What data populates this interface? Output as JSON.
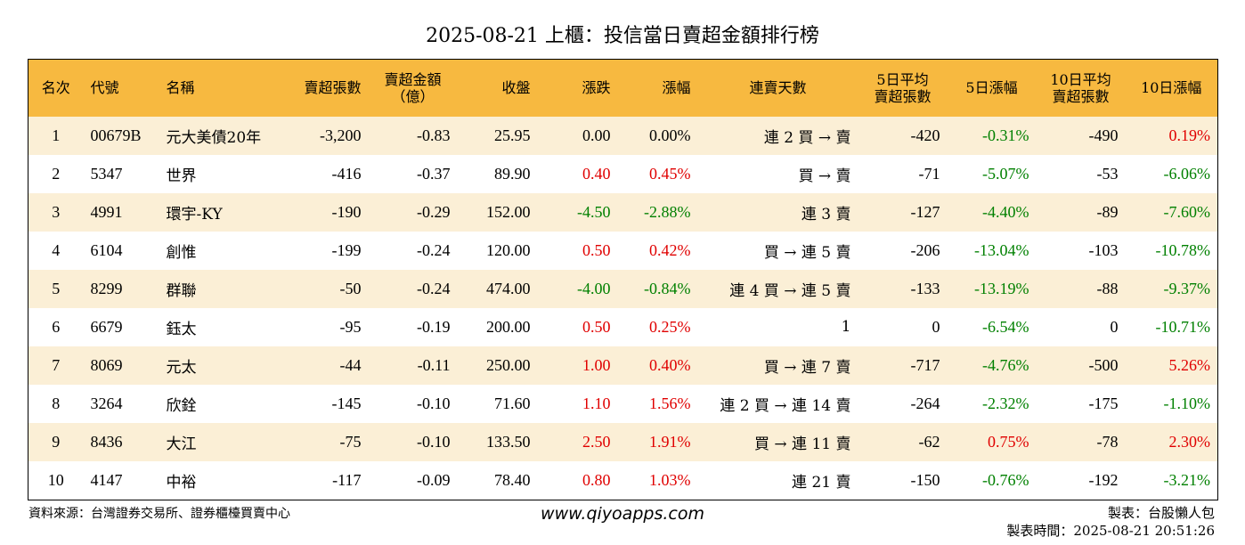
{
  "title": "2025-08-21 上櫃：投信當日賣超金額排行榜",
  "headers": {
    "rank": "名次",
    "code": "代號",
    "name": "名稱",
    "sell_lots": "賣超張數",
    "sell_amount_1": "賣超金額",
    "sell_amount_2": "（億）",
    "close": "收盤",
    "change": "漲跌",
    "change_pct": "漲幅",
    "streak": "連賣天數",
    "avg5_1": "5日平均",
    "avg5_2": "賣超張數",
    "pct5": "5日漲幅",
    "avg10_1": "10日平均",
    "avg10_2": "賣超張數",
    "pct10": "10日漲幅"
  },
  "colors": {
    "header_bg": "#f7b940",
    "stripe_bg": "#fbefd6",
    "up": "#e00000",
    "down": "#008000"
  },
  "rows": [
    {
      "rank": "1",
      "code": "00679B",
      "name": "元大美債20年",
      "sell_lots": "-3,200",
      "sell_amount": "-0.83",
      "close": "25.95",
      "change": "0.00",
      "change_pct": "0.00%",
      "streak": "連 2 買 → 賣",
      "avg5": "-420",
      "pct5": "-0.31%",
      "avg10": "-490",
      "pct10": "0.19%",
      "chg_dir": "neu",
      "pct5_dir": "down",
      "pct10_dir": "up"
    },
    {
      "rank": "2",
      "code": "5347",
      "name": "世界",
      "sell_lots": "-416",
      "sell_amount": "-0.37",
      "close": "89.90",
      "change": "0.40",
      "change_pct": "0.45%",
      "streak": "買 → 賣",
      "avg5": "-71",
      "pct5": "-5.07%",
      "avg10": "-53",
      "pct10": "-6.06%",
      "chg_dir": "up",
      "pct5_dir": "down",
      "pct10_dir": "down"
    },
    {
      "rank": "3",
      "code": "4991",
      "name": "環宇-KY",
      "sell_lots": "-190",
      "sell_amount": "-0.29",
      "close": "152.00",
      "change": "-4.50",
      "change_pct": "-2.88%",
      "streak": "連 3 賣",
      "avg5": "-127",
      "pct5": "-4.40%",
      "avg10": "-89",
      "pct10": "-7.60%",
      "chg_dir": "down",
      "pct5_dir": "down",
      "pct10_dir": "down"
    },
    {
      "rank": "4",
      "code": "6104",
      "name": "創惟",
      "sell_lots": "-199",
      "sell_amount": "-0.24",
      "close": "120.00",
      "change": "0.50",
      "change_pct": "0.42%",
      "streak": "買 → 連 5 賣",
      "avg5": "-206",
      "pct5": "-13.04%",
      "avg10": "-103",
      "pct10": "-10.78%",
      "chg_dir": "up",
      "pct5_dir": "down",
      "pct10_dir": "down"
    },
    {
      "rank": "5",
      "code": "8299",
      "name": "群聯",
      "sell_lots": "-50",
      "sell_amount": "-0.24",
      "close": "474.00",
      "change": "-4.00",
      "change_pct": "-0.84%",
      "streak": "連 4 買 → 連 5 賣",
      "avg5": "-133",
      "pct5": "-13.19%",
      "avg10": "-88",
      "pct10": "-9.37%",
      "chg_dir": "down",
      "pct5_dir": "down",
      "pct10_dir": "down"
    },
    {
      "rank": "6",
      "code": "6679",
      "name": "鈺太",
      "sell_lots": "-95",
      "sell_amount": "-0.19",
      "close": "200.00",
      "change": "0.50",
      "change_pct": "0.25%",
      "streak": "1",
      "avg5": "0",
      "pct5": "-6.54%",
      "avg10": "0",
      "pct10": "-10.71%",
      "chg_dir": "up",
      "pct5_dir": "down",
      "pct10_dir": "down"
    },
    {
      "rank": "7",
      "code": "8069",
      "name": "元太",
      "sell_lots": "-44",
      "sell_amount": "-0.11",
      "close": "250.00",
      "change": "1.00",
      "change_pct": "0.40%",
      "streak": "買 → 連 7 賣",
      "avg5": "-717",
      "pct5": "-4.76%",
      "avg10": "-500",
      "pct10": "5.26%",
      "chg_dir": "up",
      "pct5_dir": "down",
      "pct10_dir": "up"
    },
    {
      "rank": "8",
      "code": "3264",
      "name": "欣銓",
      "sell_lots": "-145",
      "sell_amount": "-0.10",
      "close": "71.60",
      "change": "1.10",
      "change_pct": "1.56%",
      "streak": "連 2 買 → 連 14 賣",
      "avg5": "-264",
      "pct5": "-2.32%",
      "avg10": "-175",
      "pct10": "-1.10%",
      "chg_dir": "up",
      "pct5_dir": "down",
      "pct10_dir": "down"
    },
    {
      "rank": "9",
      "code": "8436",
      "name": "大江",
      "sell_lots": "-75",
      "sell_amount": "-0.10",
      "close": "133.50",
      "change": "2.50",
      "change_pct": "1.91%",
      "streak": "買 → 連 11 賣",
      "avg5": "-62",
      "pct5": "0.75%",
      "avg10": "-78",
      "pct10": "2.30%",
      "chg_dir": "up",
      "pct5_dir": "up",
      "pct10_dir": "up"
    },
    {
      "rank": "10",
      "code": "4147",
      "name": "中裕",
      "sell_lots": "-117",
      "sell_amount": "-0.09",
      "close": "78.40",
      "change": "0.80",
      "change_pct": "1.03%",
      "streak": "連 21 賣",
      "avg5": "-150",
      "pct5": "-0.76%",
      "avg10": "-192",
      "pct10": "-3.21%",
      "chg_dir": "up",
      "pct5_dir": "down",
      "pct10_dir": "down"
    }
  ],
  "footer": {
    "source": "資料來源：台灣證券交易所、證券櫃檯買賣中心",
    "website": "www.qiyoapps.com",
    "author": "製表：台股懶人包",
    "timestamp": "製表時間：2025-08-21 20:51:26"
  }
}
